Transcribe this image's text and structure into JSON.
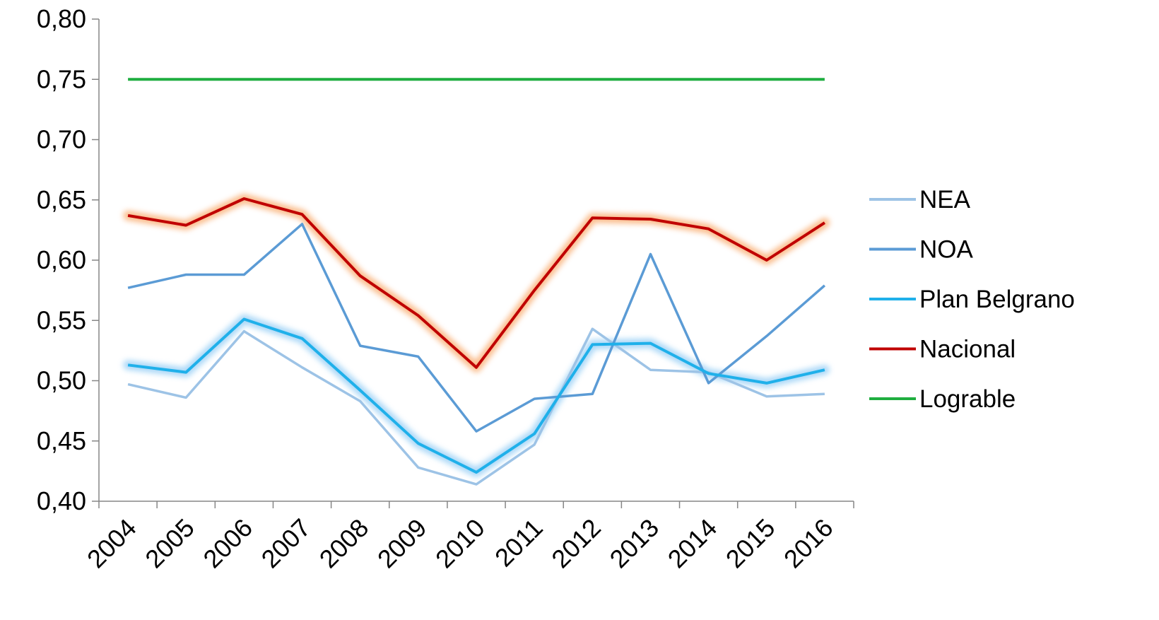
{
  "chart_data": {
    "type": "line",
    "title": "",
    "xlabel": "",
    "ylabel": "",
    "categories": [
      "2004",
      "2005",
      "2006",
      "2007",
      "2008",
      "2009",
      "2010",
      "2011",
      "2012",
      "2013",
      "2014",
      "2015",
      "2016"
    ],
    "ylim": [
      0.4,
      0.8
    ],
    "ytick_values": [
      0.4,
      0.45,
      0.5,
      0.55,
      0.6,
      0.65,
      0.7,
      0.75,
      0.8
    ],
    "ytick_labels": [
      "0,40",
      "0,45",
      "0,50",
      "0,55",
      "0,60",
      "0,65",
      "0,70",
      "0,75",
      "0,80"
    ],
    "grid": false,
    "legend_position": "right",
    "series": [
      {
        "name": "NEA",
        "color": "#9dc3e6",
        "glow": false,
        "values": [
          0.497,
          0.486,
          0.541,
          0.511,
          0.483,
          0.428,
          0.414,
          0.447,
          0.543,
          0.509,
          0.507,
          0.487,
          0.489
        ]
      },
      {
        "name": "NOA",
        "color": "#5b9bd5",
        "glow": false,
        "values": [
          0.577,
          0.588,
          0.588,
          0.63,
          0.529,
          0.52,
          0.458,
          0.485,
          0.489,
          0.605,
          0.498,
          0.537,
          0.579
        ]
      },
      {
        "name": "Plan Belgrano",
        "color": "#1fb0ea",
        "glow": true,
        "glow_color": "#9fd2f6",
        "values": [
          0.513,
          0.507,
          0.551,
          0.535,
          0.492,
          0.448,
          0.424,
          0.456,
          0.53,
          0.531,
          0.506,
          0.498,
          0.509
        ]
      },
      {
        "name": "Nacional",
        "color": "#c00000",
        "glow": true,
        "glow_color": "#f9b27a",
        "values": [
          0.637,
          0.629,
          0.651,
          0.638,
          0.587,
          0.554,
          0.511,
          0.575,
          0.635,
          0.634,
          0.626,
          0.6,
          0.631
        ]
      },
      {
        "name": "Lograble",
        "color": "#1fae40",
        "glow": true,
        "glow_color": "#a8e39a",
        "values": [
          0.75,
          0.75,
          0.75,
          0.75,
          0.75,
          0.75,
          0.75,
          0.75,
          0.75,
          0.75,
          0.75,
          0.75,
          0.75
        ]
      }
    ]
  }
}
